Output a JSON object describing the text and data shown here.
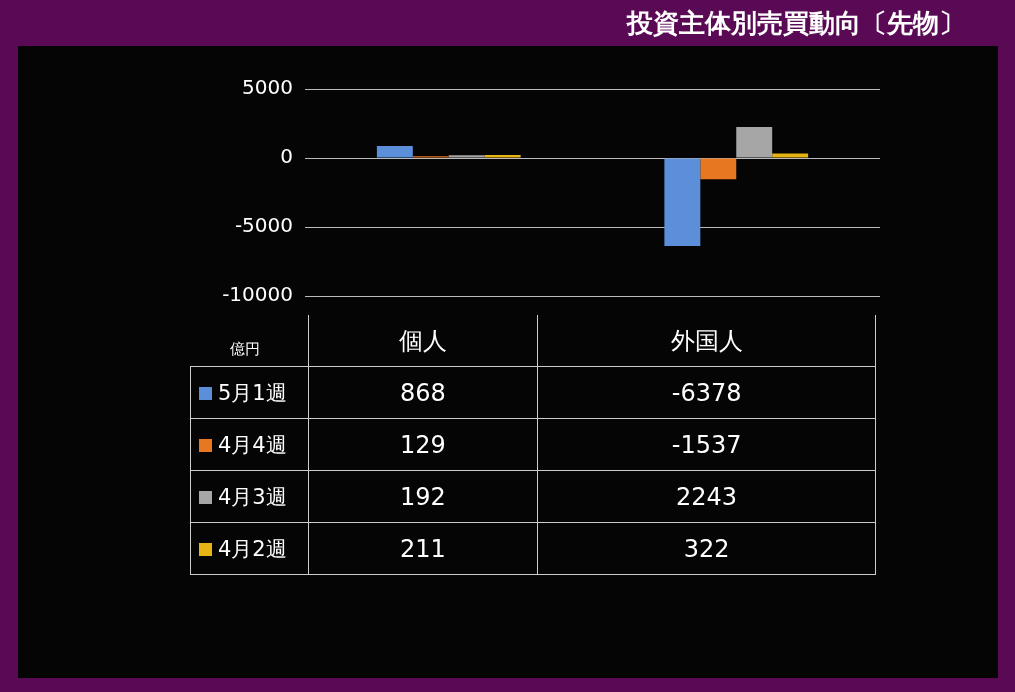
{
  "chart_data": {
    "type": "bar",
    "title": "投資主体別売買動向〔先物〕",
    "ylabel": "億円",
    "categories": [
      "個人",
      "外国人"
    ],
    "series": [
      {
        "name": "5月1週",
        "color": "#5b8fd9",
        "values": [
          868,
          -6378
        ]
      },
      {
        "name": "4月4週",
        "color": "#e87722",
        "values": [
          129,
          -1537
        ]
      },
      {
        "name": "4月3週",
        "color": "#a6a6a6",
        "values": [
          192,
          2243
        ]
      },
      {
        "name": "4月2週",
        "color": "#e6b414",
        "values": [
          211,
          322
        ]
      }
    ],
    "ylim": [
      -10000,
      5000
    ],
    "yticks": [
      5000,
      0,
      -5000,
      -10000
    ],
    "grid": "y",
    "legend": "bottom",
    "data_labels": true
  }
}
